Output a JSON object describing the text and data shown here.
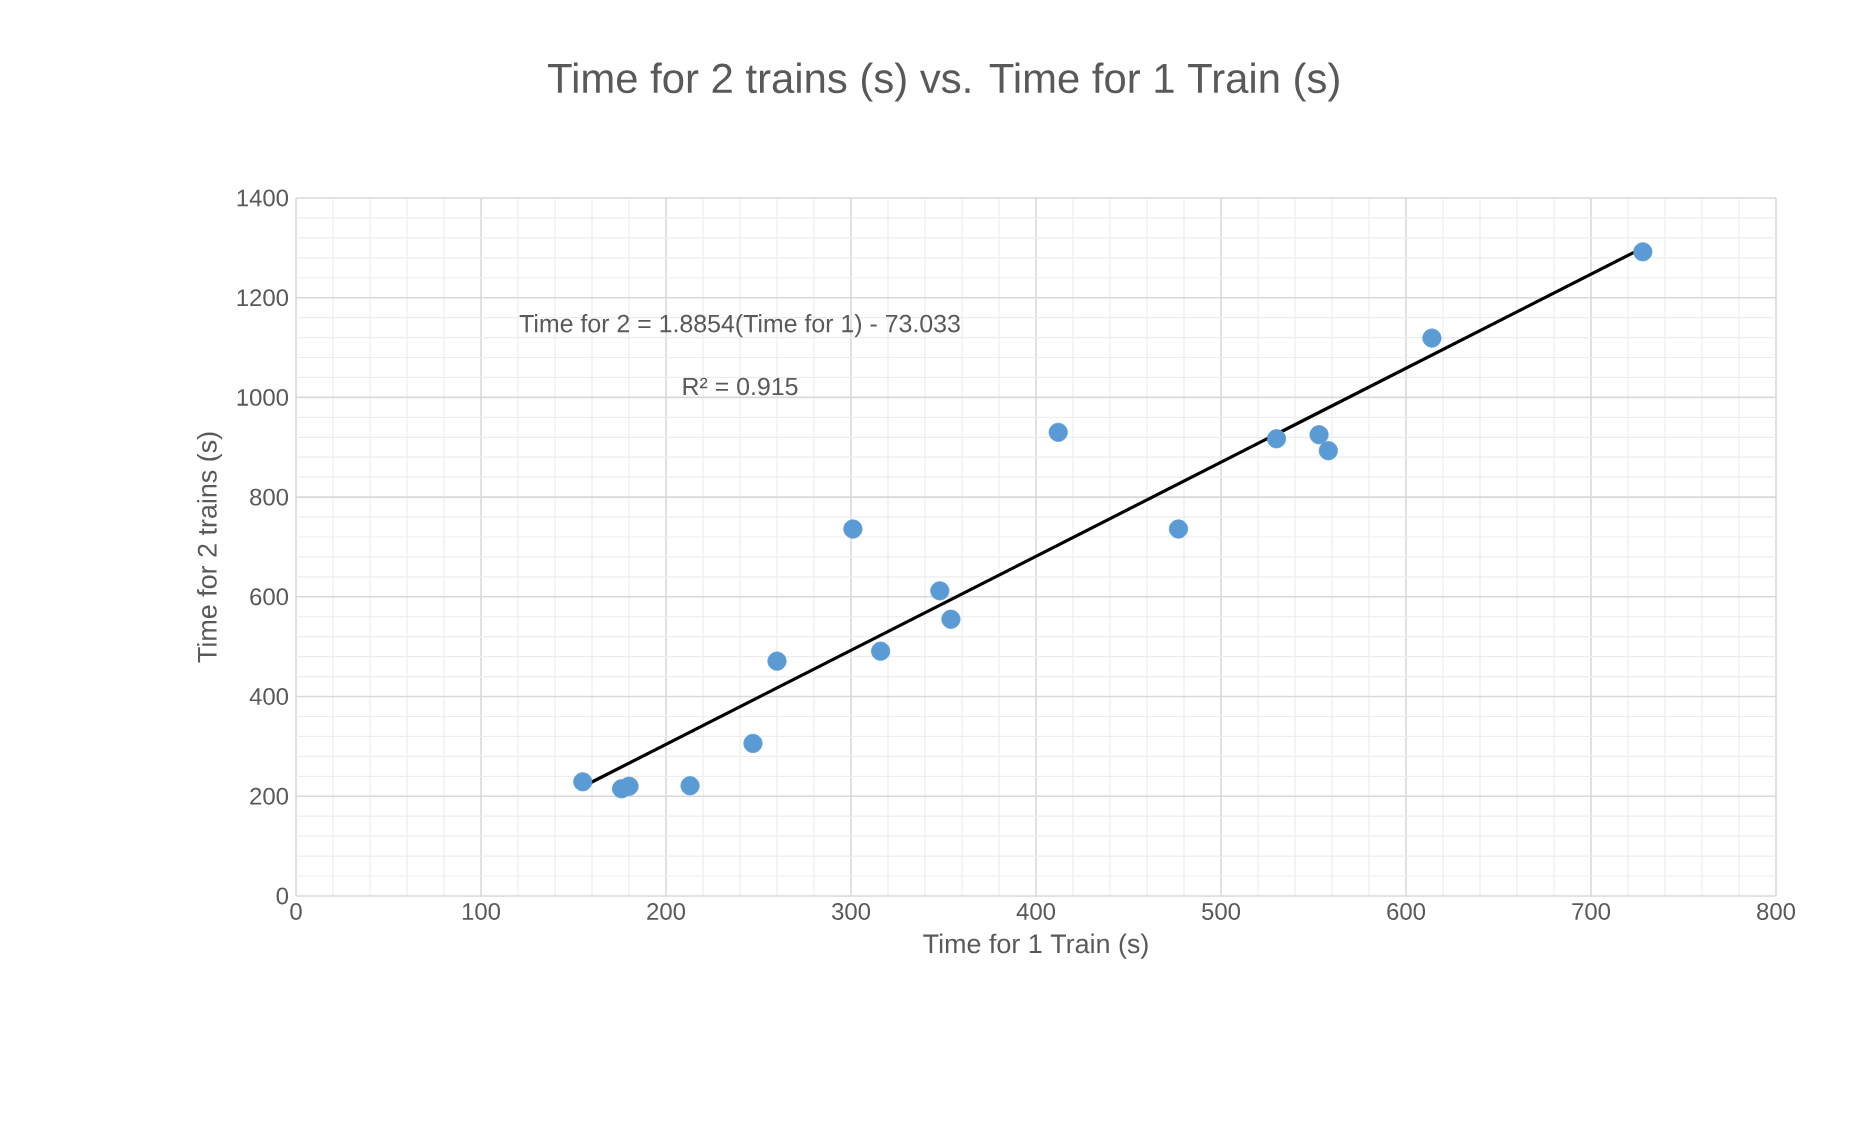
{
  "chart_data": {
    "type": "scatter",
    "title": "Time for 2 trains (s) vs. Time for 1 Train (s)",
    "xlabel": "Time for 1 Train (s)",
    "ylabel": "Time for 2 trains (s)",
    "xlim": [
      0,
      800
    ],
    "xticks": [
      0,
      100,
      200,
      300,
      400,
      500,
      600,
      700,
      800
    ],
    "ylim": [
      0,
      1400
    ],
    "yticks": [
      0,
      200,
      400,
      600,
      800,
      1000,
      1200,
      1400
    ],
    "grid": true,
    "annotations": [
      "Time for 2 = 1.8854(Time for 1) - 73.033",
      "R² = 0.915"
    ],
    "series": [
      {
        "color": "#5b9bd5",
        "marker": "circle",
        "x": [
          155,
          176,
          180,
          213,
          247,
          260,
          301,
          316,
          348,
          354,
          412,
          477,
          530,
          553,
          558,
          614,
          728
        ],
        "values": [
          229,
          215,
          220,
          221,
          306,
          471,
          736,
          491,
          612,
          555,
          930,
          736,
          917,
          925,
          893,
          1119,
          1292
        ]
      },
      {
        "type": "line",
        "color": "#000000",
        "marker": "none",
        "x": [
          157,
          728
        ],
        "values": [
          223,
          1300
        ]
      }
    ]
  }
}
